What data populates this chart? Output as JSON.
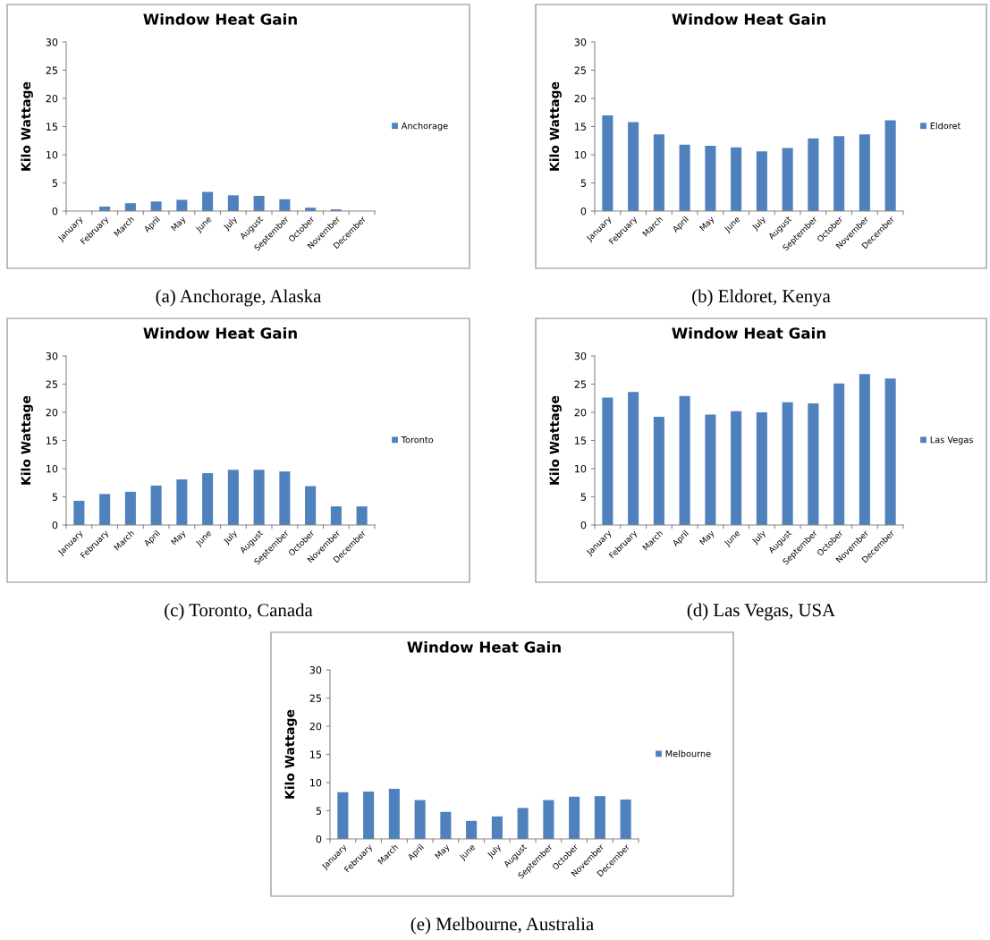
{
  "chart_data": [
    {
      "type": "bar",
      "title": "Window Heat Gain",
      "ylabel": "Kilo Wattage",
      "categories": [
        "January",
        "February",
        "March",
        "April",
        "May",
        "June",
        "July",
        "August",
        "September",
        "October",
        "November",
        "December"
      ],
      "series": [
        {
          "name": "Anchorage",
          "color": "#4f81bd",
          "values": [
            0,
            0.8,
            1.4,
            1.7,
            2.0,
            3.4,
            2.8,
            2.7,
            2.1,
            0.6,
            0.3,
            0
          ]
        }
      ],
      "ylim": [
        0,
        30
      ],
      "yticks": [
        0,
        5,
        10,
        15,
        20,
        25,
        30
      ],
      "legend": "right",
      "grid": false,
      "annotations": [
        "(a) Anchorage, Alaska"
      ]
    },
    {
      "type": "bar",
      "title": "Window Heat Gain",
      "ylabel": "Kilo Wattage",
      "categories": [
        "January",
        "February",
        "March",
        "April",
        "May",
        "June",
        "July",
        "August",
        "September",
        "October",
        "November",
        "December"
      ],
      "series": [
        {
          "name": "Eldoret",
          "color": "#4f81bd",
          "values": [
            17.0,
            15.8,
            13.6,
            11.8,
            11.6,
            11.3,
            10.6,
            11.2,
            12.9,
            13.3,
            13.6,
            16.1
          ]
        }
      ],
      "ylim": [
        0,
        30
      ],
      "yticks": [
        0,
        5,
        10,
        15,
        20,
        25,
        30
      ],
      "legend": "right",
      "grid": false,
      "annotations": [
        "(b) Eldoret, Kenya"
      ]
    },
    {
      "type": "bar",
      "title": "Window Heat Gain",
      "ylabel": "Kilo Wattage",
      "categories": [
        "January",
        "February",
        "March",
        "April",
        "May",
        "June",
        "July",
        "August",
        "September",
        "October",
        "November",
        "December"
      ],
      "series": [
        {
          "name": "Toronto",
          "color": "#4f81bd",
          "values": [
            4.3,
            5.5,
            5.9,
            7.0,
            8.1,
            9.2,
            9.8,
            9.8,
            9.5,
            6.9,
            3.3,
            3.3
          ]
        }
      ],
      "ylim": [
        0,
        30
      ],
      "yticks": [
        0,
        5,
        10,
        15,
        20,
        25,
        30
      ],
      "legend": "right",
      "grid": false,
      "annotations": [
        "(c) Toronto, Canada"
      ]
    },
    {
      "type": "bar",
      "title": "Window Heat Gain",
      "ylabel": "Kilo Wattage",
      "categories": [
        "January",
        "February",
        "March",
        "April",
        "May",
        "June",
        "July",
        "August",
        "September",
        "October",
        "November",
        "December"
      ],
      "series": [
        {
          "name": "Las Vegas",
          "color": "#4f81bd",
          "values": [
            22.6,
            23.6,
            19.2,
            22.9,
            19.6,
            20.2,
            20.0,
            21.8,
            21.6,
            25.1,
            26.8,
            26.0
          ]
        }
      ],
      "ylim": [
        0,
        30
      ],
      "yticks": [
        0,
        5,
        10,
        15,
        20,
        25,
        30
      ],
      "legend": "right",
      "grid": false,
      "annotations": [
        "(d) Las Vegas, USA"
      ]
    },
    {
      "type": "bar",
      "title": "Window Heat Gain",
      "ylabel": "Kilo Wattage",
      "categories": [
        "January",
        "February",
        "March",
        "April",
        "May",
        "June",
        "July",
        "August",
        "September",
        "October",
        "November",
        "December"
      ],
      "series": [
        {
          "name": "Melbourne",
          "color": "#4f81bd",
          "values": [
            8.3,
            8.4,
            8.9,
            6.9,
            4.8,
            3.2,
            4.0,
            5.5,
            6.9,
            7.5,
            7.6,
            7.0
          ]
        }
      ],
      "ylim": [
        0,
        30
      ],
      "yticks": [
        0,
        5,
        10,
        15,
        20,
        25,
        30
      ],
      "legend": "right",
      "grid": false,
      "annotations": [
        "(e) Melbourne, Australia"
      ]
    }
  ]
}
